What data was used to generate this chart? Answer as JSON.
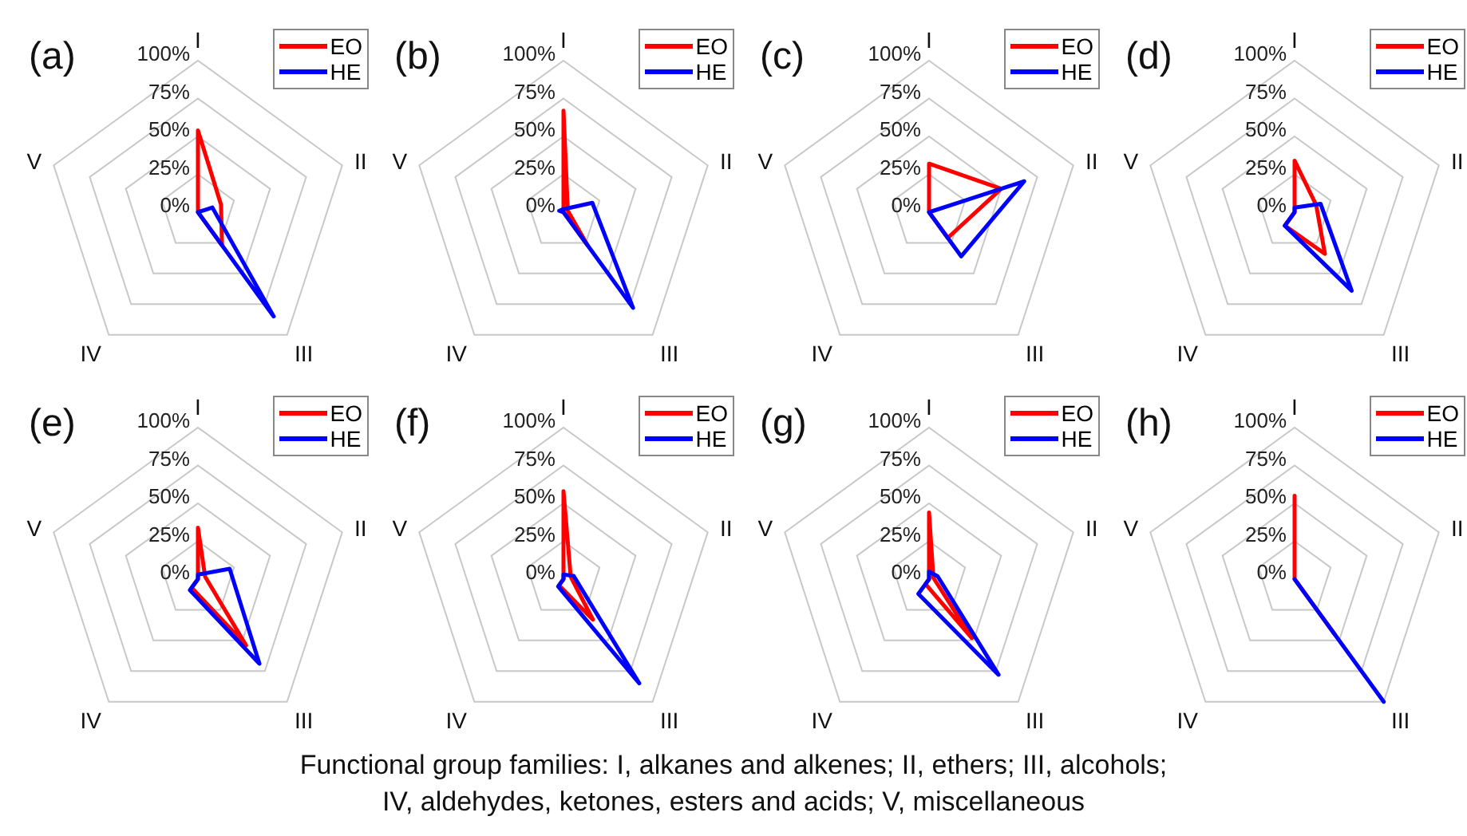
{
  "chart_data": [
    {
      "type": "radar",
      "title": "(a)",
      "categories": [
        "I",
        "II",
        "III",
        "IV",
        "V"
      ],
      "ylim": [
        0,
        100
      ],
      "yticks": [
        {
          "value": 0,
          "label": "0%"
        },
        {
          "value": 25,
          "label": "25%"
        },
        {
          "value": 50,
          "label": "50%"
        },
        {
          "value": 75,
          "label": "75%"
        },
        {
          "value": 100,
          "label": "100%"
        }
      ],
      "grid": true,
      "legend": "top right",
      "marker": "none",
      "line_style": "solid",
      "series": [
        {
          "name": "EO",
          "color": "#ff0000",
          "values": [
            54,
            16,
            27,
            0,
            0
          ]
        },
        {
          "name": "HE",
          "color": "#0000ff",
          "values": [
            0,
            10,
            85,
            0,
            0
          ]
        }
      ]
    },
    {
      "type": "radar",
      "title": "(b)",
      "categories": [
        "I",
        "II",
        "III",
        "IV",
        "V"
      ],
      "ylim": [
        0,
        100
      ],
      "yticks": [
        {
          "value": 0,
          "label": "0%"
        },
        {
          "value": 25,
          "label": "25%"
        },
        {
          "value": 50,
          "label": "50%"
        },
        {
          "value": 75,
          "label": "75%"
        },
        {
          "value": 100,
          "label": "100%"
        }
      ],
      "grid": true,
      "legend": "top right",
      "marker": "none",
      "line_style": "solid",
      "series": [
        {
          "name": "EO",
          "color": "#ff0000",
          "values": [
            67,
            3,
            27,
            0,
            0
          ]
        },
        {
          "name": "HE",
          "color": "#0000ff",
          "values": [
            2,
            20,
            78,
            0,
            3
          ]
        }
      ]
    },
    {
      "type": "radar",
      "title": "(c)",
      "categories": [
        "I",
        "II",
        "III",
        "IV",
        "V"
      ],
      "ylim": [
        0,
        100
      ],
      "yticks": [
        {
          "value": 0,
          "label": "0%"
        },
        {
          "value": 25,
          "label": "25%"
        },
        {
          "value": 50,
          "label": "50%"
        },
        {
          "value": 75,
          "label": "75%"
        },
        {
          "value": 100,
          "label": "100%"
        }
      ],
      "grid": true,
      "legend": "top right",
      "marker": "none",
      "line_style": "solid",
      "series": [
        {
          "name": "EO",
          "color": "#ff0000",
          "values": [
            32,
            50,
            21,
            0,
            0
          ]
        },
        {
          "name": "HE",
          "color": "#0000ff",
          "values": [
            0,
            66,
            36,
            0,
            0
          ]
        }
      ]
    },
    {
      "type": "radar",
      "title": "(d)",
      "categories": [
        "I",
        "II",
        "III",
        "IV",
        "V"
      ],
      "ylim": [
        0,
        100
      ],
      "yticks": [
        {
          "value": 0,
          "label": "0%"
        },
        {
          "value": 25,
          "label": "25%"
        },
        {
          "value": 50,
          "label": "50%"
        },
        {
          "value": 75,
          "label": "75%"
        },
        {
          "value": 100,
          "label": "100%"
        }
      ],
      "grid": true,
      "legend": "top right",
      "marker": "none",
      "line_style": "solid",
      "series": [
        {
          "name": "EO",
          "color": "#ff0000",
          "values": [
            34,
            15,
            34,
            11,
            0
          ]
        },
        {
          "name": "HE",
          "color": "#0000ff",
          "values": [
            3,
            18,
            64,
            11,
            0
          ]
        }
      ]
    },
    {
      "type": "radar",
      "title": "(e)",
      "categories": [
        "I",
        "II",
        "III",
        "IV",
        "V"
      ],
      "ylim": [
        0,
        100
      ],
      "yticks": [
        {
          "value": 0,
          "label": "0%"
        },
        {
          "value": 25,
          "label": "25%"
        },
        {
          "value": 50,
          "label": "50%"
        },
        {
          "value": 75,
          "label": "75%"
        },
        {
          "value": 100,
          "label": "100%"
        }
      ],
      "grid": true,
      "legend": "top right",
      "marker": "none",
      "line_style": "solid",
      "series": [
        {
          "name": "EO",
          "color": "#ff0000",
          "values": [
            34,
            5,
            54,
            7,
            0
          ]
        },
        {
          "name": "HE",
          "color": "#0000ff",
          "values": [
            3,
            22,
            69,
            9,
            0
          ]
        }
      ]
    },
    {
      "type": "radar",
      "title": "(f)",
      "categories": [
        "I",
        "II",
        "III",
        "IV",
        "V"
      ],
      "ylim": [
        0,
        100
      ],
      "yticks": [
        {
          "value": 0,
          "label": "0%"
        },
        {
          "value": 25,
          "label": "25%"
        },
        {
          "value": 50,
          "label": "50%"
        },
        {
          "value": 75,
          "label": "75%"
        },
        {
          "value": 100,
          "label": "100%"
        }
      ],
      "grid": true,
      "legend": "top right",
      "marker": "none",
      "line_style": "solid",
      "series": [
        {
          "name": "EO",
          "color": "#ff0000",
          "values": [
            58,
            5,
            33,
            5,
            0
          ]
        },
        {
          "name": "HE",
          "color": "#0000ff",
          "values": [
            3,
            7,
            85,
            6,
            0
          ]
        }
      ]
    },
    {
      "type": "radar",
      "title": "(g)",
      "categories": [
        "I",
        "II",
        "III",
        "IV",
        "V"
      ],
      "ylim": [
        0,
        100
      ],
      "yticks": [
        {
          "value": 0,
          "label": "0%"
        },
        {
          "value": 25,
          "label": "25%"
        },
        {
          "value": 50,
          "label": "50%"
        },
        {
          "value": 75,
          "label": "75%"
        },
        {
          "value": 100,
          "label": "100%"
        }
      ],
      "grid": true,
      "legend": "top right",
      "marker": "none",
      "line_style": "solid",
      "series": [
        {
          "name": "EO",
          "color": "#ff0000",
          "values": [
            44,
            3,
            48,
            4,
            0
          ]
        },
        {
          "name": "HE",
          "color": "#0000ff",
          "values": [
            5,
            6,
            78,
            12,
            0
          ]
        }
      ]
    },
    {
      "type": "radar",
      "title": "(h)",
      "categories": [
        "I",
        "II",
        "III",
        "IV",
        "V"
      ],
      "ylim": [
        0,
        100
      ],
      "yticks": [
        {
          "value": 0,
          "label": "0%"
        },
        {
          "value": 25,
          "label": "25%"
        },
        {
          "value": 50,
          "label": "50%"
        },
        {
          "value": 75,
          "label": "75%"
        },
        {
          "value": 100,
          "label": "100%"
        }
      ],
      "grid": true,
      "legend": "top right",
      "marker": "none",
      "line_style": "solid",
      "annotations": [
        "Functional group families: I, alkanes and alkenes; II, ethers; III, alcohols; IV, aldehydes, ketones, esters and acids; V, miscellaneous"
      ],
      "series": [
        {
          "name": "EO",
          "color": "#ff0000",
          "values": [
            55,
            0,
            45,
            0,
            0
          ]
        },
        {
          "name": "HE",
          "color": "#0000ff",
          "values": [
            0,
            0,
            100,
            0,
            0
          ]
        }
      ]
    }
  ]
}
